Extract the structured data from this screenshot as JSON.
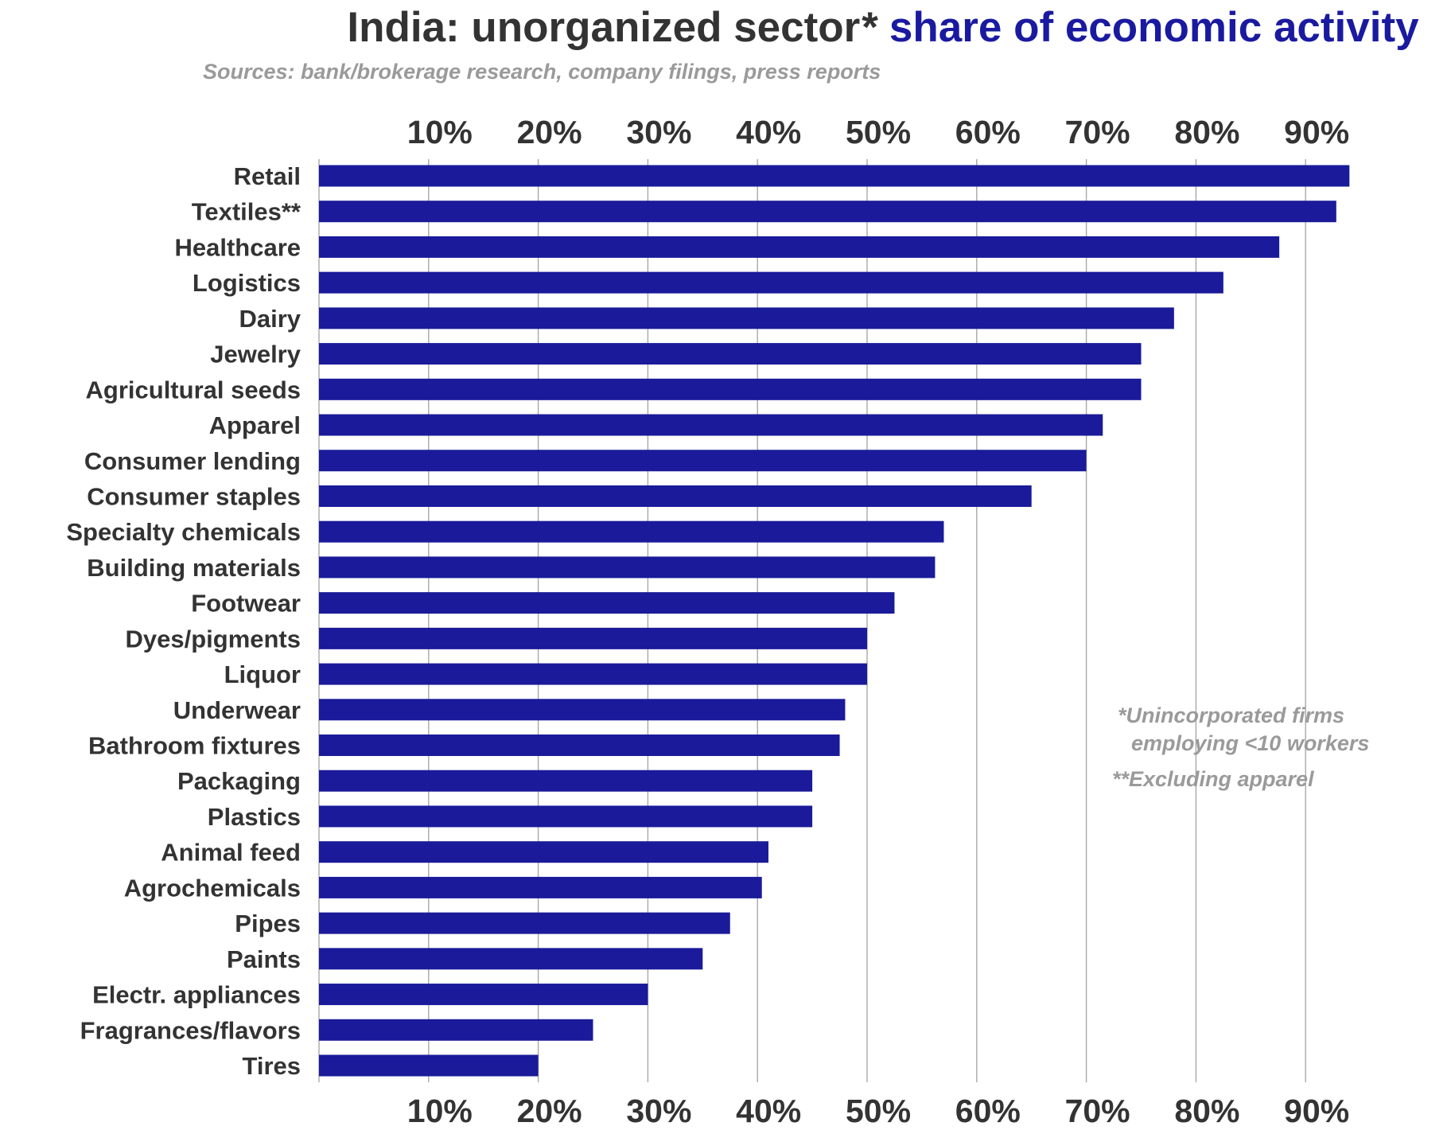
{
  "chart_data": {
    "type": "bar",
    "orientation": "horizontal",
    "title_part1": "India: unorganized sector",
    "title_marker": "*",
    "title_part2": "share of economic activity",
    "subtitle": "Sources: bank/brokerage research, company filings, press reports",
    "xlim": [
      0,
      95
    ],
    "x_ticks": [
      10,
      20,
      30,
      40,
      50,
      60,
      70,
      80,
      90
    ],
    "x_tick_labels": [
      "10%",
      "20%",
      "30%",
      "40%",
      "50%",
      "60%",
      "70%",
      "80%",
      "90%"
    ],
    "tick_positions": [
      "top",
      "bottom"
    ],
    "grid": "vertical",
    "categories": [
      "Retail",
      "Textiles**",
      "Healthcare",
      "Logistics",
      "Dairy",
      "Jewelry",
      "Agricultural seeds",
      "Apparel",
      "Consumer lending",
      "Consumer staples",
      "Specialty chemicals",
      "Building materials",
      "Footwear",
      "Dyes/pigments",
      "Liquor",
      "Underwear",
      "Bathroom fixtures",
      "Packaging",
      "Plastics",
      "Animal feed",
      "Agrochemicals",
      "Pipes",
      "Paints",
      "Electr. appliances",
      "Fragrances/flavors",
      "Tires"
    ],
    "values": [
      94,
      92.8,
      87.6,
      82.5,
      78,
      75,
      75,
      71.5,
      70,
      65,
      57,
      56.2,
      52.5,
      50,
      50,
      48,
      47.5,
      45,
      45,
      41,
      40.4,
      37.5,
      35,
      30,
      25,
      20
    ],
    "bar_color": "#1a1a9a",
    "notes": [
      "*Unincorporated firms",
      "employing <10 workers",
      "**Excluding apparel"
    ]
  }
}
